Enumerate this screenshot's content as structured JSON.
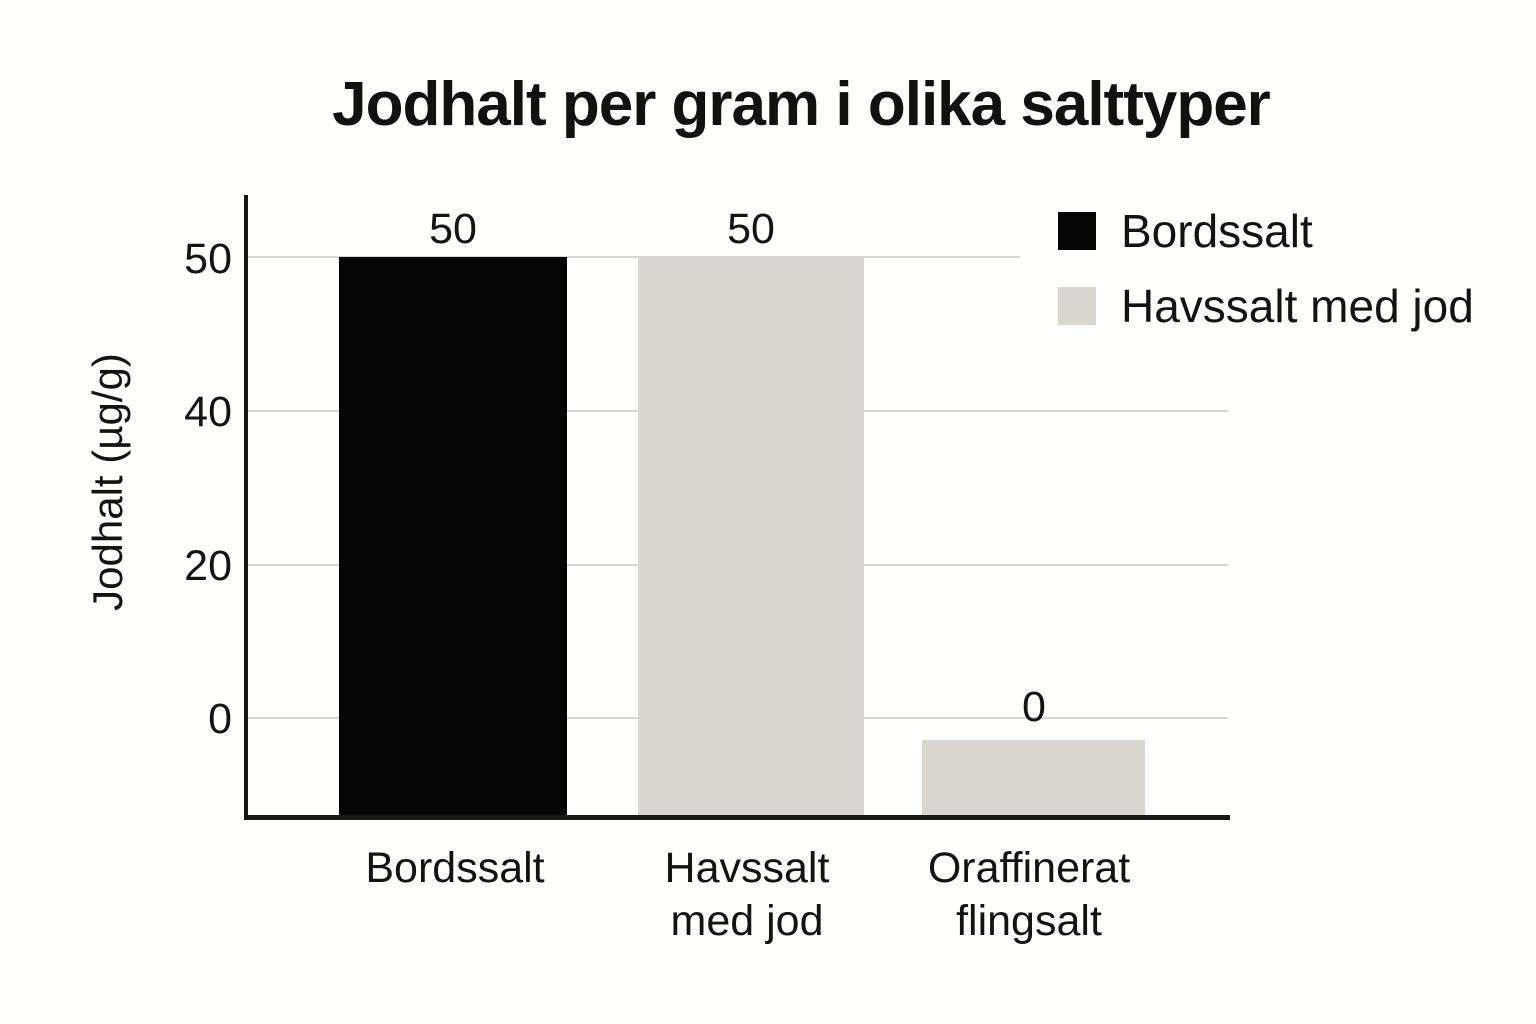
{
  "title": "Jodhalt per gram i olika salttyper",
  "y_axis": {
    "label": "Jodhalt (µg/g)",
    "ticks": [
      "50",
      "40",
      "20",
      "0"
    ]
  },
  "x_axis": {
    "categories": [
      {
        "lines": [
          "Bordssalt",
          ""
        ]
      },
      {
        "lines": [
          "Havssalt",
          "med jod"
        ]
      },
      {
        "lines": [
          "Oraffinerat",
          "flingsalt"
        ]
      }
    ]
  },
  "bars": [
    {
      "name": "Bordssalt",
      "value_label": "50",
      "color": "#060606"
    },
    {
      "name": "Havssalt med jod",
      "value_label": "50",
      "color": "#d9d5d1"
    },
    {
      "name": "Oraffinerat flingsalt",
      "value_label": "0",
      "color": "#d9d5d1"
    }
  ],
  "legend": {
    "items": [
      {
        "label": "Bordssalt",
        "color": "#060606"
      },
      {
        "label": "Havssalt med jod",
        "color": "#d9d5d1"
      }
    ]
  },
  "colors": {
    "background": "#fffffe",
    "text": "#131313",
    "axis": "#161616",
    "gridline": "#d8d6d4",
    "bar_black": "#060606",
    "bar_gray": "#d9d5d1"
  },
  "chart_data": {
    "type": "bar",
    "title": "Jodhalt per gram i olika salttyper",
    "xlabel": "",
    "ylabel": "Jodhalt (µg/g)",
    "categories": [
      "Bordssalt",
      "Havssalt med jod",
      "Oraffinerat flingsalt"
    ],
    "values": [
      50,
      50,
      0
    ],
    "data_labels": [
      "50",
      "50",
      "0"
    ],
    "y_ticks": [
      50,
      40,
      20,
      0
    ],
    "ylim": [
      0,
      55
    ],
    "grid": true,
    "legend_position": "top-right",
    "series_colors": {
      "Bordssalt": "#060606",
      "Havssalt med jod": "#d9d5d1"
    },
    "notes": "Single bar per category; bars 1-2 reach the 50 gridline, bar 3 labelled 0 is drawn as a short bar just below the 0 gridline; y ticks 50/40/20/0 are evenly spaced."
  }
}
